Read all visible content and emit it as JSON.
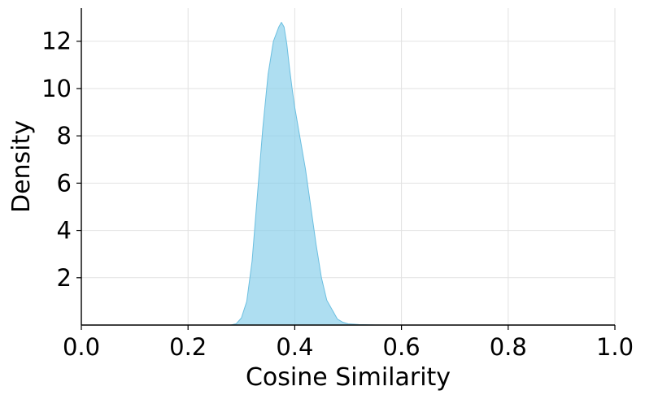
{
  "chart_data": {
    "type": "area",
    "title": "",
    "xlabel": "Cosine Similarity",
    "ylabel": "Density",
    "xlim": [
      0.0,
      1.0
    ],
    "ylim": [
      0.0,
      13.4
    ],
    "grid": true,
    "x_ticks": [
      0.0,
      0.2,
      0.4,
      0.6,
      0.8,
      1.0
    ],
    "x_tick_labels": [
      "0.0",
      "0.2",
      "0.4",
      "0.6",
      "0.8",
      "1.0"
    ],
    "y_ticks": [
      2,
      4,
      6,
      8,
      10,
      12
    ],
    "y_tick_labels": [
      "2",
      "4",
      "6",
      "8",
      "10",
      "12"
    ],
    "colors": {
      "fill": "#87ceeb",
      "stroke": "#6cbfe0"
    },
    "series": [
      {
        "x": [
          0.28,
          0.29,
          0.3,
          0.31,
          0.32,
          0.33,
          0.34,
          0.35,
          0.36,
          0.37,
          0.375,
          0.38,
          0.385,
          0.39,
          0.395,
          0.4,
          0.41,
          0.42,
          0.43,
          0.44,
          0.45,
          0.46,
          0.47,
          0.48,
          0.49,
          0.5,
          0.52,
          0.55,
          0.58
        ],
        "y": [
          0.0,
          0.05,
          0.3,
          1.0,
          2.7,
          5.5,
          8.3,
          10.6,
          12.0,
          12.6,
          12.8,
          12.6,
          11.9,
          10.9,
          10.0,
          9.2,
          7.9,
          6.6,
          5.0,
          3.4,
          2.0,
          1.05,
          0.65,
          0.25,
          0.12,
          0.05,
          0.02,
          0.005,
          0.0
        ]
      }
    ]
  }
}
